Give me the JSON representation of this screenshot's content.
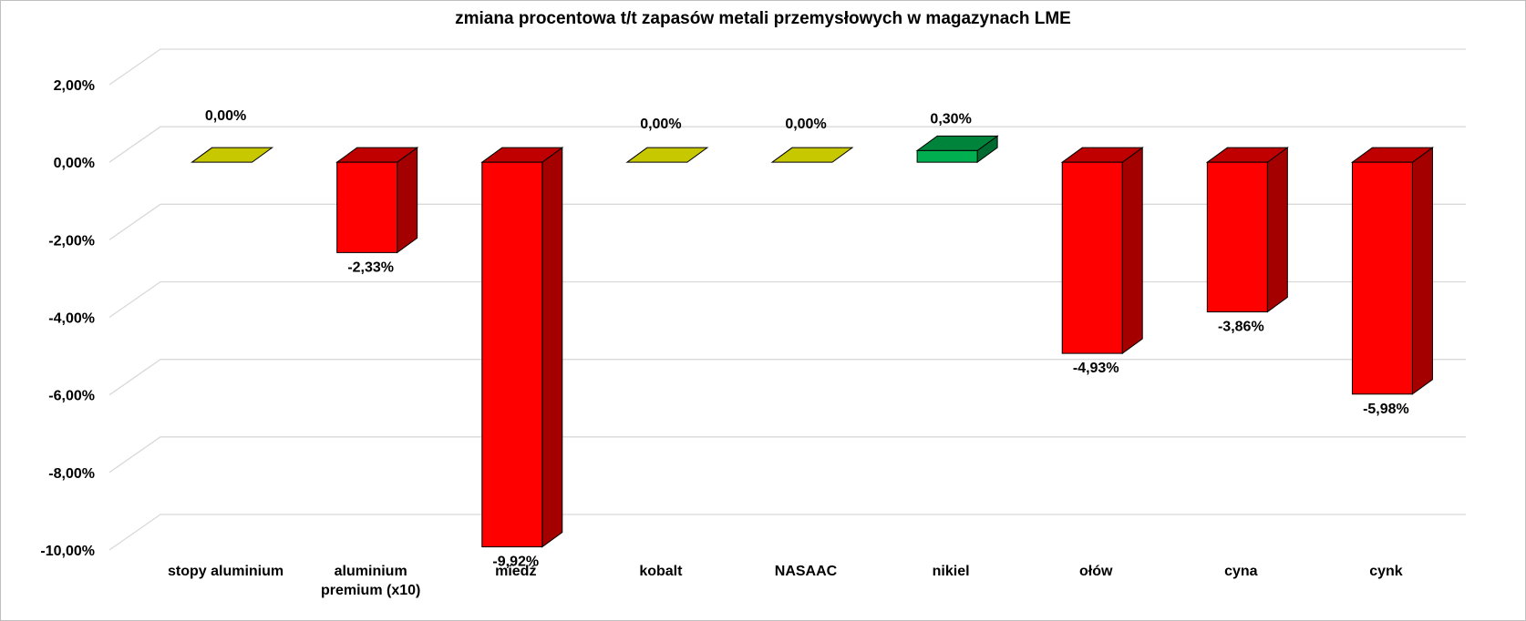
{
  "chart_data": {
    "type": "bar",
    "style": "3d-column",
    "title": "zmiana procentowa t/t zapasów metali przemysłowych w magazynach LME",
    "categories": [
      [
        "stopy aluminium"
      ],
      [
        "aluminium",
        "premium (x10)"
      ],
      [
        "miedź"
      ],
      [
        "kobalt"
      ],
      [
        "NASAAC"
      ],
      [
        "nikiel"
      ],
      [
        "ołów"
      ],
      [
        "cyna"
      ],
      [
        "cynk"
      ]
    ],
    "values": [
      0.0,
      -2.33,
      -9.92,
      0.0,
      0.0,
      0.3,
      -4.93,
      -3.86,
      -5.98
    ],
    "data_labels": [
      "0,00%",
      "-2,33%",
      "-9,92%",
      "0,00%",
      "0,00%",
      "0,30%",
      "-4,93%",
      "-3,86%",
      "-5,98%"
    ],
    "yticks": [
      2,
      0,
      -2,
      -4,
      -6,
      -8,
      -10
    ],
    "ytick_labels": [
      "2,00%",
      "0,00%",
      "-2,00%",
      "-4,00%",
      "-6,00%",
      "-8,00%",
      "-10,00%"
    ],
    "ylim": [
      -10,
      2
    ],
    "grid": true,
    "legend": "none",
    "colors": {
      "negative_front": "#ff0000",
      "negative_top": "#c00000",
      "negative_side": "#a50000",
      "positive_front": "#00b050",
      "positive_top": "#00843c",
      "positive_side": "#006b30",
      "zero_top": "#c8c800",
      "outline": "#000000",
      "gridline": "#d9d9d9"
    }
  }
}
